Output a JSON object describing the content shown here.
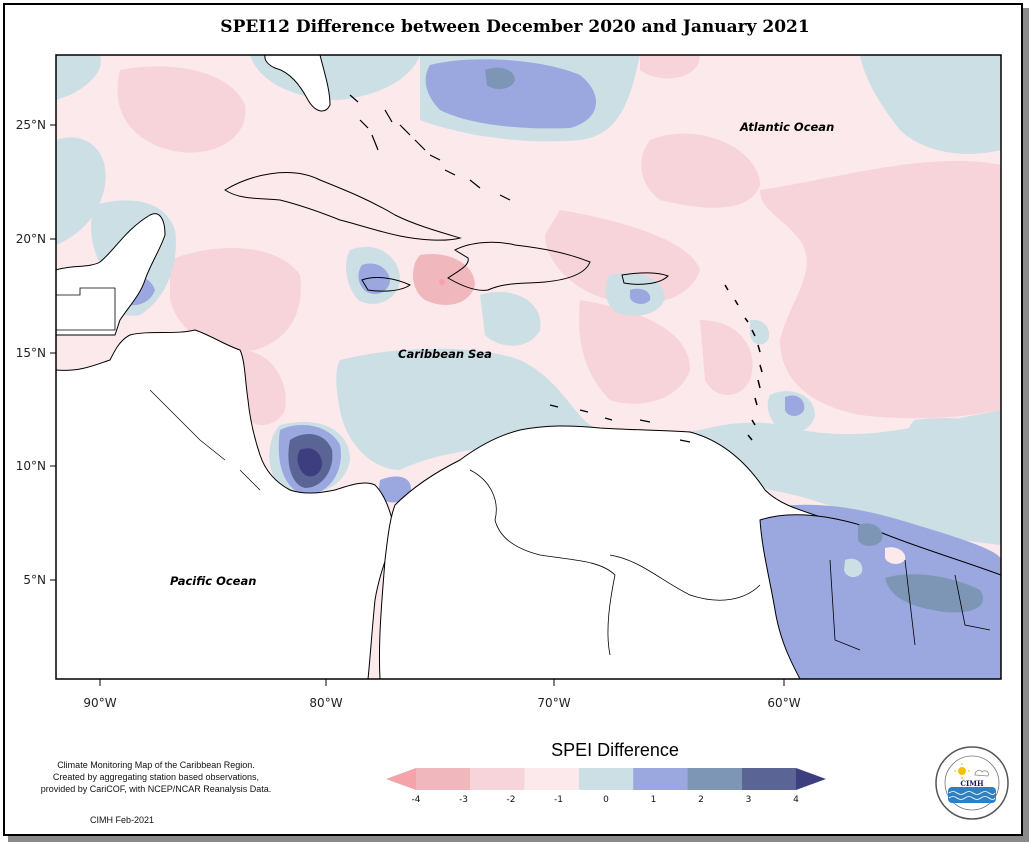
{
  "title": "SPEI12 Difference between December 2020 and January 2021",
  "map_labels": {
    "atlantic": "Atlantic Ocean",
    "caribbean": "Caribbean Sea",
    "pacific": "Pacific Ocean"
  },
  "axes": {
    "lat_ticks": [
      "25°N",
      "20°N",
      "15°N",
      "10°N",
      "5°N"
    ],
    "lon_ticks": [
      "90°W",
      "80°W",
      "70°W",
      "60°W"
    ]
  },
  "legend": {
    "title": "SPEI Difference",
    "ticks": [
      "-4",
      "-3",
      "-2",
      "-1",
      "0",
      "1",
      "2",
      "3",
      "4"
    ],
    "colors": [
      "#f4a3a8",
      "#f0b8bc",
      "#f7d4da",
      "#fbe9ec",
      "#ccdfe5",
      "#9ba8df",
      "#7d96b6",
      "#5b6595",
      "#3d3e80"
    ]
  },
  "caption": {
    "line1": "Climate Monitoring Map of the Caribbean Region.",
    "line2": "Created by aggregating station based observations,",
    "line3": "provided by CariCOF, with NCEP/NCAR Reanalysis Data."
  },
  "credit": "CIMH Feb-2021",
  "logo": {
    "org": "CIMH",
    "icon": "cimh-logo-icon"
  }
}
